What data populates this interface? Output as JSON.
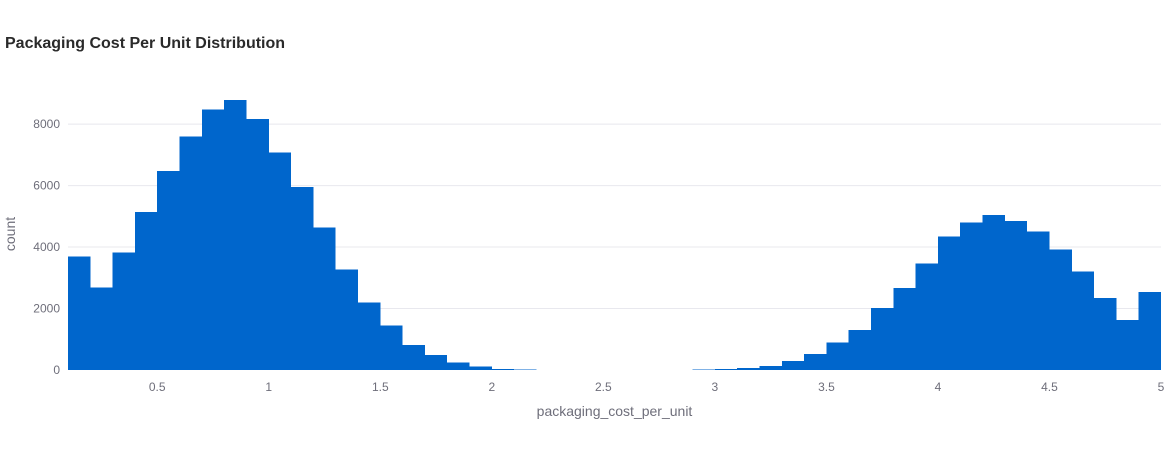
{
  "chart_data": {
    "type": "bar",
    "title": "Packaging Cost Per Unit Distribution",
    "xlabel": "packaging_cost_per_unit",
    "ylabel": "count",
    "bar_color": "#0066cc",
    "grid": true,
    "xlim": [
      0.1,
      5.0
    ],
    "ylim": [
      0,
      9500
    ],
    "x_ticks": [
      0.5,
      1,
      1.5,
      2,
      2.5,
      3,
      3.5,
      4,
      4.5,
      5
    ],
    "x_tick_labels": [
      "0.5",
      "1",
      "1.5",
      "2",
      "2.5",
      "3",
      "3.5",
      "4",
      "4.5",
      "5"
    ],
    "y_ticks": [
      0,
      2000,
      4000,
      6000,
      8000
    ],
    "y_tick_labels": [
      "0",
      "2000",
      "4000",
      "6000",
      "8000"
    ],
    "bin_width": 0.1,
    "bins_start": [
      0.1,
      0.2,
      0.3,
      0.4,
      0.5,
      0.6,
      0.7,
      0.8,
      0.9,
      1.0,
      1.1,
      1.2,
      1.3,
      1.4,
      1.5,
      1.6,
      1.7,
      1.8,
      1.9,
      2.0,
      2.1,
      2.2,
      2.3,
      2.4,
      2.5,
      2.6,
      2.7,
      2.8,
      2.9,
      3.0,
      3.1,
      3.2,
      3.3,
      3.4,
      3.5,
      3.6,
      3.7,
      3.8,
      3.9,
      4.0,
      4.1,
      4.2,
      4.3,
      4.4,
      4.5,
      4.6,
      4.7,
      4.8,
      4.9
    ],
    "values": [
      3700,
      2680,
      3830,
      5140,
      6480,
      7600,
      8480,
      8780,
      8160,
      7080,
      5960,
      4630,
      3270,
      2200,
      1440,
      820,
      480,
      240,
      110,
      40,
      10,
      0,
      0,
      0,
      0,
      0,
      0,
      0,
      10,
      30,
      60,
      130,
      300,
      520,
      890,
      1300,
      2020,
      2670,
      3460,
      4350,
      4800,
      5040,
      4850,
      4510,
      3920,
      3200,
      2350,
      1620,
      2540
    ]
  }
}
